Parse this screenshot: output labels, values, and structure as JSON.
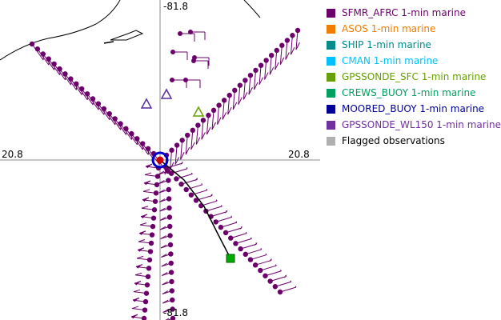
{
  "axes": {
    "lon_top": "-81.8",
    "lon_bottom": "-81.8",
    "lat_left": "20.8",
    "lat_right": "20.8"
  },
  "legend": {
    "items": [
      {
        "label": "SFMR_AFRC 1-min marine",
        "color": "#6b006b"
      },
      {
        "label": "ASOS 1-min marine",
        "color": "#f07c00"
      },
      {
        "label": "SHIP 1-min marine",
        "color": "#008b8b"
      },
      {
        "label": "CMAN 1-min marine",
        "color": "#00c0ff"
      },
      {
        "label": "GPSSONDE_SFC 1-min marine",
        "color": "#66a000"
      },
      {
        "label": "CREWS_BUOY 1-min marine",
        "color": "#00a060"
      },
      {
        "label": "MOORED_BUOY 1-min marine",
        "color": "#000099"
      },
      {
        "label": "GPSSONDE_WL150 1-min marine",
        "color": "#7030a0"
      },
      {
        "label": "Flagged observations",
        "color": "#b0b0b0"
      }
    ]
  },
  "colors": {
    "sfmr": "#6b006b",
    "crews_buoy_marker": "#00aa00",
    "moored_buoy_ring": "#0000cc",
    "center_marker": "#cc0000",
    "track_line": "#000000",
    "sonde_triangle": "#5a2ca0"
  }
}
